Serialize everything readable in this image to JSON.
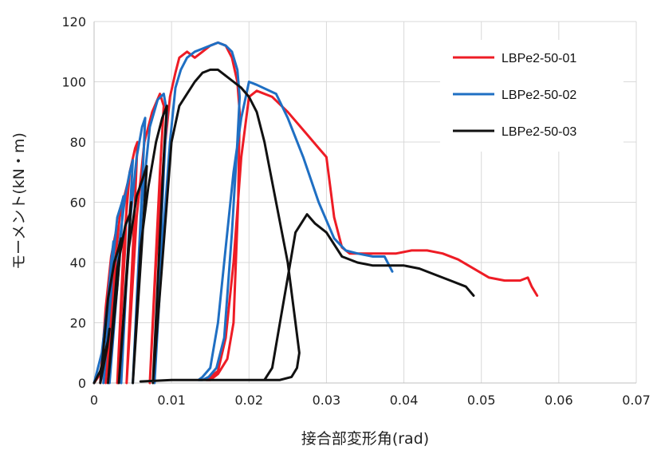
{
  "chart_data": {
    "type": "line",
    "title": "",
    "xlabel": "接合部変形角(rad)",
    "ylabel": "モーメント(kN・m)",
    "xlim": [
      0,
      0.07
    ],
    "ylim": [
      0,
      120
    ],
    "xticks": [
      0,
      0.01,
      0.02,
      0.03,
      0.04,
      0.05,
      0.06,
      0.07
    ],
    "xtick_labels": [
      "0",
      "0.01",
      "0.02",
      "0.03",
      "0.04",
      "0.05",
      "0.06",
      "0.07"
    ],
    "yticks": [
      0,
      20,
      40,
      60,
      80,
      100,
      120
    ],
    "ytick_labels": [
      "0",
      "20",
      "40",
      "60",
      "80",
      "100",
      "120"
    ],
    "grid": true,
    "legend_position": "top-right",
    "series": [
      {
        "name": "LBPe2-50-01",
        "color": "#ee1c25",
        "x": [
          0,
          0.0008,
          0.0012,
          0.0016,
          0.0018,
          0.0016,
          0.0008,
          0.0015,
          0.0022,
          0.0028,
          0.003,
          0.0026,
          0.0015,
          0.0025,
          0.0033,
          0.004,
          0.0043,
          0.004,
          0.003,
          0.0038,
          0.0046,
          0.0053,
          0.0056,
          0.0052,
          0.0042,
          0.0055,
          0.0065,
          0.0075,
          0.0085,
          0.009,
          0.0085,
          0.0072,
          0.008,
          0.009,
          0.0098,
          0.0105,
          0.011,
          0.012,
          0.013,
          0.014,
          0.015,
          0.016,
          0.017,
          0.0178,
          0.0185,
          0.0188,
          0.0186,
          0.018,
          0.0172,
          0.016,
          0.015,
          0.0145,
          0.015,
          0.016,
          0.017,
          0.018,
          0.019,
          0.02,
          0.021,
          0.023,
          0.025,
          0.027,
          0.029,
          0.03,
          0.031,
          0.032,
          0.033,
          0.035,
          0.037,
          0.039,
          0.041,
          0.043,
          0.045,
          0.047,
          0.049,
          0.051,
          0.053,
          0.055,
          0.056,
          0.0565,
          0.0572
        ],
        "y": [
          0,
          3,
          8,
          12,
          16,
          10,
          0,
          25,
          42,
          50,
          52,
          30,
          0,
          35,
          55,
          63,
          66,
          45,
          0,
          45,
          70,
          78,
          80,
          55,
          0,
          55,
          80,
          90,
          96,
          92,
          70,
          0,
          40,
          75,
          95,
          103,
          108,
          110,
          108,
          110,
          112,
          113,
          112,
          108,
          100,
          90,
          60,
          20,
          8,
          3,
          1,
          1,
          2,
          4,
          15,
          40,
          75,
          95,
          97,
          95,
          90,
          84,
          78,
          75,
          55,
          45,
          43,
          43,
          43,
          43,
          44,
          44,
          43,
          41,
          38,
          35,
          34,
          34,
          35,
          32,
          29
        ]
      },
      {
        "name": "LBPe2-50-02",
        "color": "#1f6fc3",
        "x": [
          0,
          0.001,
          0.0018,
          0.0022,
          0.0025,
          0.0022,
          0.0012,
          0.0022,
          0.003,
          0.0036,
          0.0038,
          0.0034,
          0.002,
          0.0032,
          0.004,
          0.0046,
          0.005,
          0.0046,
          0.0035,
          0.0045,
          0.0055,
          0.0062,
          0.0066,
          0.0062,
          0.005,
          0.0062,
          0.0072,
          0.0082,
          0.009,
          0.0094,
          0.009,
          0.0078,
          0.0088,
          0.0098,
          0.0105,
          0.0112,
          0.012,
          0.013,
          0.014,
          0.015,
          0.016,
          0.017,
          0.0178,
          0.0185,
          0.0188,
          0.0185,
          0.0178,
          0.0168,
          0.0158,
          0.0148,
          0.014,
          0.0135,
          0.014,
          0.015,
          0.016,
          0.017,
          0.018,
          0.019,
          0.02,
          0.021,
          0.0235,
          0.025,
          0.027,
          0.029,
          0.031,
          0.0325,
          0.034,
          0.036,
          0.0375,
          0.0385
        ],
        "y": [
          0,
          10,
          28,
          40,
          47,
          30,
          0,
          35,
          55,
          60,
          62,
          45,
          0,
          45,
          62,
          70,
          74,
          55,
          0,
          50,
          75,
          85,
          88,
          65,
          0,
          60,
          85,
          94,
          96,
          90,
          70,
          0,
          45,
          80,
          98,
          104,
          108,
          110,
          111,
          112,
          113,
          112,
          110,
          104,
          95,
          80,
          50,
          15,
          5,
          2,
          1,
          1,
          2,
          5,
          20,
          45,
          70,
          88,
          100,
          99,
          96,
          88,
          75,
          60,
          48,
          44,
          43,
          42,
          42,
          37
        ]
      },
      {
        "name": "LBPe2-50-03",
        "color": "#111111",
        "x": [
          0,
          0.0008,
          0.0014,
          0.0018,
          0.002,
          0.0017,
          0.0008,
          0.0018,
          0.0026,
          0.0032,
          0.0035,
          0.003,
          0.0018,
          0.003,
          0.004,
          0.0046,
          0.0048,
          0.0044,
          0.0032,
          0.0045,
          0.0055,
          0.0063,
          0.0068,
          0.0064,
          0.005,
          0.006,
          0.007,
          0.008,
          0.0088,
          0.0094,
          0.009,
          0.0076,
          0.0088,
          0.01,
          0.011,
          0.012,
          0.013,
          0.014,
          0.015,
          0.016,
          0.017,
          0.018,
          0.019,
          0.02,
          0.021,
          0.022,
          0.0235,
          0.025,
          0.026,
          0.0265,
          0.0262,
          0.0255,
          0.024,
          0.022,
          0.02,
          0.015,
          0.01,
          0.006,
          0.01,
          0.015,
          0.02,
          0.022,
          0.023,
          0.024,
          0.025,
          0.026,
          0.0275,
          0.0285,
          0.03,
          0.032,
          0.034,
          0.036,
          0.038,
          0.04,
          0.042,
          0.044,
          0.046,
          0.048,
          0.049
        ],
        "y": [
          0,
          4,
          10,
          14,
          18,
          12,
          0,
          28,
          40,
          45,
          48,
          32,
          0,
          38,
          52,
          56,
          60,
          44,
          0,
          45,
          62,
          68,
          72,
          55,
          0,
          45,
          65,
          80,
          88,
          92,
          75,
          0,
          40,
          80,
          92,
          96,
          100,
          103,
          104,
          104,
          102,
          100,
          98,
          95,
          90,
          80,
          60,
          40,
          20,
          10,
          5,
          2,
          1,
          1,
          1,
          1,
          1,
          0.5,
          1,
          1,
          1,
          1,
          5,
          20,
          35,
          50,
          56,
          53,
          50,
          42,
          40,
          39,
          39,
          39,
          38,
          36,
          34,
          32,
          29
        ]
      }
    ]
  }
}
